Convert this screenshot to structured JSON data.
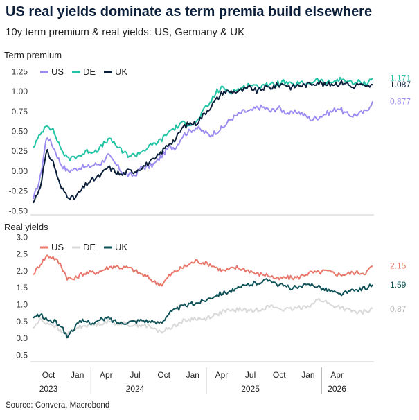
{
  "title": "US real yields dominate as term premia build elsewhere",
  "subtitle": "10y term premium & real yields: US, Germany & UK",
  "source": "Source: Convera, Macrobond",
  "chart_data": [
    {
      "type": "line",
      "panel_label": "Term premium",
      "ylim": [
        -0.55,
        1.35
      ],
      "yticks": [
        "1.25",
        "1.00",
        "0.75",
        "0.50",
        "0.25",
        "0.00",
        "-0.25",
        "-0.50"
      ],
      "ytick_values": [
        1.25,
        1.0,
        0.75,
        0.5,
        0.25,
        0.0,
        -0.25,
        -0.5
      ],
      "legend_position": "top-left",
      "series": [
        {
          "name": "US",
          "color": "#9b8cf0",
          "end_label": "0.877",
          "end_value": 0.877,
          "x": [
            0,
            0.02,
            0.04,
            0.06,
            0.08,
            0.1,
            0.12,
            0.14,
            0.16,
            0.18,
            0.2,
            0.22,
            0.24,
            0.26,
            0.28,
            0.3,
            0.32,
            0.34,
            0.36,
            0.38,
            0.4,
            0.42,
            0.44,
            0.46,
            0.48,
            0.5,
            0.52,
            0.54,
            0.56,
            0.58,
            0.6,
            0.62,
            0.64,
            0.66,
            0.68,
            0.7,
            0.72,
            0.74,
            0.76,
            0.78,
            0.8,
            0.82,
            0.84,
            0.86,
            0.88,
            0.9,
            0.92,
            0.94,
            0.96,
            0.98,
            1.0
          ],
          "values": [
            -0.35,
            -0.1,
            0.45,
            0.3,
            0.1,
            0.0,
            0.02,
            0.05,
            0.05,
            0.08,
            0.1,
            0.2,
            0.1,
            0.0,
            -0.05,
            -0.05,
            0.05,
            0.05,
            0.1,
            0.2,
            0.3,
            0.3,
            0.45,
            0.5,
            0.55,
            0.5,
            0.45,
            0.5,
            0.55,
            0.65,
            0.7,
            0.75,
            0.75,
            0.8,
            0.8,
            0.75,
            0.8,
            0.75,
            0.72,
            0.75,
            0.7,
            0.65,
            0.68,
            0.72,
            0.75,
            0.8,
            0.72,
            0.7,
            0.72,
            0.75,
            0.877
          ]
        },
        {
          "name": "DE",
          "color": "#23c4a6",
          "end_label": "1.171",
          "end_value": 1.171,
          "x": [
            0,
            0.02,
            0.04,
            0.06,
            0.08,
            0.1,
            0.12,
            0.14,
            0.16,
            0.18,
            0.2,
            0.22,
            0.24,
            0.26,
            0.28,
            0.3,
            0.32,
            0.34,
            0.36,
            0.38,
            0.4,
            0.42,
            0.44,
            0.46,
            0.48,
            0.5,
            0.52,
            0.54,
            0.56,
            0.58,
            0.6,
            0.62,
            0.64,
            0.66,
            0.68,
            0.7,
            0.72,
            0.74,
            0.76,
            0.78,
            0.8,
            0.82,
            0.84,
            0.86,
            0.88,
            0.9,
            0.92,
            0.94,
            0.96,
            0.98,
            1.0
          ],
          "values": [
            0.3,
            0.45,
            0.6,
            0.5,
            0.3,
            0.15,
            0.18,
            0.2,
            0.25,
            0.25,
            0.3,
            0.4,
            0.35,
            0.25,
            0.2,
            0.2,
            0.25,
            0.3,
            0.35,
            0.4,
            0.5,
            0.55,
            0.6,
            0.6,
            0.6,
            0.75,
            0.85,
            1.0,
            1.05,
            1.0,
            1.02,
            1.05,
            1.1,
            1.05,
            1.1,
            1.08,
            1.1,
            1.12,
            1.08,
            1.1,
            1.1,
            1.12,
            1.15,
            1.1,
            1.12,
            1.15,
            1.15,
            1.1,
            1.12,
            1.1,
            1.171
          ]
        },
        {
          "name": "UK",
          "color": "#0b1e3a",
          "end_label": "1.087",
          "end_value": 1.087,
          "x": [
            0,
            0.02,
            0.04,
            0.06,
            0.08,
            0.1,
            0.12,
            0.14,
            0.16,
            0.18,
            0.2,
            0.22,
            0.24,
            0.26,
            0.28,
            0.3,
            0.32,
            0.34,
            0.36,
            0.38,
            0.4,
            0.42,
            0.44,
            0.46,
            0.48,
            0.5,
            0.52,
            0.54,
            0.56,
            0.58,
            0.6,
            0.62,
            0.64,
            0.66,
            0.68,
            0.7,
            0.72,
            0.74,
            0.76,
            0.78,
            0.8,
            0.82,
            0.84,
            0.86,
            0.88,
            0.9,
            0.92,
            0.94,
            0.96,
            0.98,
            1.0
          ],
          "values": [
            -0.4,
            -0.2,
            0.25,
            0.1,
            -0.2,
            -0.3,
            -0.35,
            -0.25,
            -0.15,
            -0.1,
            -0.05,
            0.05,
            0.0,
            -0.05,
            0.0,
            0.0,
            0.05,
            0.1,
            0.15,
            0.25,
            0.35,
            0.4,
            0.55,
            0.6,
            0.6,
            0.7,
            0.8,
            0.9,
            1.0,
            1.0,
            1.0,
            1.02,
            1.05,
            1.0,
            1.05,
            1.05,
            1.08,
            1.1,
            1.05,
            1.08,
            1.08,
            1.1,
            1.12,
            1.08,
            1.1,
            1.1,
            1.12,
            1.05,
            1.1,
            1.05,
            1.087
          ]
        }
      ]
    },
    {
      "type": "line",
      "panel_label": "Real yields",
      "ylim": [
        -0.7,
        3.05
      ],
      "yticks": [
        "3.0",
        "2.5",
        "2.0",
        "1.5",
        "1.0",
        "0.5",
        "0.0",
        "-0.5"
      ],
      "ytick_values": [
        3.0,
        2.5,
        2.0,
        1.5,
        1.0,
        0.5,
        0.0,
        -0.5
      ],
      "legend_position": "top-left",
      "x_axis": {
        "ticks": [
          "Oct",
          "Jan",
          "Apr",
          "Jul",
          "Oct",
          "Jan",
          "Apr",
          "Jul",
          "Oct",
          "Jan",
          "Apr"
        ],
        "years": [
          "2023",
          "2024",
          "2025",
          "2026"
        ]
      },
      "series": [
        {
          "name": "US",
          "color": "#e8766a",
          "end_label": "2.15",
          "end_value": 2.15,
          "x": [
            0,
            0.02,
            0.04,
            0.06,
            0.08,
            0.1,
            0.12,
            0.14,
            0.16,
            0.18,
            0.2,
            0.22,
            0.24,
            0.26,
            0.28,
            0.3,
            0.32,
            0.34,
            0.36,
            0.38,
            0.4,
            0.42,
            0.44,
            0.46,
            0.48,
            0.5,
            0.52,
            0.54,
            0.56,
            0.58,
            0.6,
            0.62,
            0.64,
            0.66,
            0.68,
            0.7,
            0.72,
            0.74,
            0.76,
            0.78,
            0.8,
            0.82,
            0.84,
            0.86,
            0.88,
            0.9,
            0.92,
            0.94,
            0.96,
            0.98,
            1.0
          ],
          "values": [
            1.9,
            2.2,
            2.45,
            2.4,
            2.2,
            1.8,
            1.75,
            1.9,
            1.95,
            1.95,
            2.0,
            2.1,
            2.15,
            2.1,
            2.1,
            2.0,
            1.9,
            1.8,
            1.65,
            1.6,
            1.85,
            2.0,
            2.1,
            2.2,
            2.3,
            2.25,
            2.2,
            2.1,
            2.0,
            2.05,
            2.1,
            2.05,
            2.0,
            1.9,
            1.9,
            1.85,
            1.75,
            1.8,
            1.8,
            1.8,
            1.9,
            1.95,
            1.95,
            2.0,
            1.95,
            1.9,
            1.9,
            1.95,
            1.95,
            1.95,
            2.15
          ]
        },
        {
          "name": "DE",
          "color": "#d9d9d9",
          "end_label": "0.87",
          "end_value": 0.87,
          "x": [
            0,
            0.02,
            0.04,
            0.06,
            0.08,
            0.1,
            0.12,
            0.14,
            0.16,
            0.18,
            0.2,
            0.22,
            0.24,
            0.26,
            0.28,
            0.3,
            0.32,
            0.34,
            0.36,
            0.38,
            0.4,
            0.42,
            0.44,
            0.46,
            0.48,
            0.5,
            0.52,
            0.54,
            0.56,
            0.58,
            0.6,
            0.62,
            0.64,
            0.66,
            0.68,
            0.7,
            0.72,
            0.74,
            0.76,
            0.78,
            0.8,
            0.82,
            0.84,
            0.86,
            0.88,
            0.9,
            0.92,
            0.94,
            0.96,
            0.98,
            1.0
          ],
          "values": [
            0.3,
            0.55,
            0.45,
            0.4,
            0.2,
            0.1,
            0.25,
            0.35,
            0.4,
            0.4,
            0.45,
            0.5,
            0.45,
            0.45,
            0.4,
            0.4,
            0.4,
            0.35,
            0.25,
            0.2,
            0.3,
            0.4,
            0.5,
            0.55,
            0.6,
            0.55,
            0.65,
            0.7,
            0.8,
            0.8,
            0.85,
            0.85,
            0.8,
            0.85,
            0.9,
            0.95,
            0.9,
            0.85,
            0.85,
            0.9,
            0.95,
            1.0,
            1.15,
            1.1,
            0.95,
            0.95,
            0.85,
            0.8,
            0.75,
            0.8,
            0.87
          ]
        },
        {
          "name": "UK",
          "color": "#0f5257",
          "end_label": "1.59",
          "end_value": 1.59,
          "x": [
            0,
            0.02,
            0.04,
            0.06,
            0.08,
            0.1,
            0.12,
            0.14,
            0.16,
            0.18,
            0.2,
            0.22,
            0.24,
            0.26,
            0.28,
            0.3,
            0.32,
            0.34,
            0.36,
            0.38,
            0.4,
            0.42,
            0.44,
            0.46,
            0.48,
            0.5,
            0.52,
            0.54,
            0.56,
            0.58,
            0.6,
            0.62,
            0.64,
            0.66,
            0.68,
            0.7,
            0.72,
            0.74,
            0.76,
            0.78,
            0.8,
            0.82,
            0.84,
            0.86,
            0.88,
            0.9,
            0.92,
            0.94,
            0.96,
            0.98,
            1.0
          ],
          "values": [
            0.6,
            0.7,
            0.55,
            0.5,
            0.4,
            0.05,
            0.3,
            0.5,
            0.5,
            0.45,
            0.55,
            0.6,
            0.5,
            0.45,
            0.5,
            0.5,
            0.55,
            0.5,
            0.45,
            0.5,
            0.75,
            0.85,
            0.95,
            1.0,
            1.05,
            1.1,
            1.2,
            1.3,
            1.35,
            1.4,
            1.45,
            1.55,
            1.6,
            1.65,
            1.7,
            1.75,
            1.6,
            1.55,
            1.5,
            1.5,
            1.55,
            1.6,
            1.55,
            1.45,
            1.4,
            1.3,
            1.35,
            1.4,
            1.45,
            1.5,
            1.59
          ]
        }
      ]
    }
  ]
}
